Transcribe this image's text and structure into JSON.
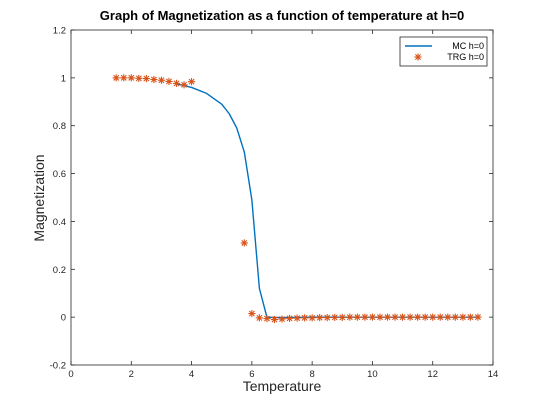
{
  "chart_data": {
    "type": "line",
    "title": "Graph of Magnetization as a function of temperature at h=0",
    "xlabel": "Temperature",
    "ylabel": "Magnetization",
    "xlim": [
      0,
      14
    ],
    "ylim": [
      -0.2,
      1.2
    ],
    "xticks": [
      0,
      2,
      4,
      6,
      8,
      10,
      12,
      14
    ],
    "yticks": [
      -0.2,
      0,
      0.2,
      0.4,
      0.6,
      0.8,
      1,
      1.2
    ],
    "xtick_labels": [
      "0",
      "2",
      "4",
      "6",
      "8",
      "10",
      "12",
      "14"
    ],
    "ytick_labels": [
      "-0.2",
      "0",
      "0.2",
      "0.4",
      "0.6",
      "0.8",
      "1",
      "1.2"
    ],
    "grid": false,
    "legend_position": "top-right",
    "series": [
      {
        "name": "MC h=0",
        "kind": "line",
        "color": "#0072BD",
        "x": [
          3.5,
          4.0,
          4.5,
          5.0,
          5.25,
          5.5,
          5.75,
          6.0,
          6.25,
          6.5,
          7.0,
          8.0,
          9.0,
          10.0,
          11.0,
          12.0,
          13.0,
          13.5
        ],
        "y": [
          0.975,
          0.96,
          0.935,
          0.89,
          0.85,
          0.79,
          0.69,
          0.49,
          0.12,
          0.0,
          -0.002,
          0.0,
          0.0,
          0.0,
          0.0,
          0.0,
          0.0,
          0.0
        ]
      },
      {
        "name": "TRG h=0",
        "kind": "marker",
        "marker": "asterisk",
        "color": "#D95319",
        "x": [
          1.5,
          1.75,
          2.0,
          2.25,
          2.5,
          2.75,
          3.0,
          3.25,
          3.5,
          3.75,
          4.0,
          5.75,
          6.0,
          6.25,
          6.5,
          6.75,
          7.0,
          7.25,
          7.5,
          7.75,
          8.0,
          8.25,
          8.5,
          8.75,
          9.0,
          9.25,
          9.5,
          9.75,
          10.0,
          10.25,
          10.5,
          10.75,
          11.0,
          11.25,
          11.5,
          11.75,
          12.0,
          12.25,
          12.5,
          12.75,
          13.0,
          13.25,
          13.5
        ],
        "y": [
          1.0,
          1.0,
          1.0,
          0.998,
          0.997,
          0.993,
          0.99,
          0.985,
          0.977,
          0.971,
          0.984,
          0.31,
          0.015,
          -0.003,
          -0.006,
          -0.01,
          -0.008,
          -0.005,
          -0.004,
          -0.003,
          -0.003,
          -0.002,
          -0.002,
          -0.001,
          -0.001,
          0.0,
          0.0,
          0.0,
          0.0,
          0.0,
          0.0,
          0.0,
          0.0,
          0.0,
          0.0,
          0.0,
          0.0,
          0.0,
          0.0,
          0.0,
          0.0,
          0.0,
          0.0
        ]
      }
    ]
  }
}
